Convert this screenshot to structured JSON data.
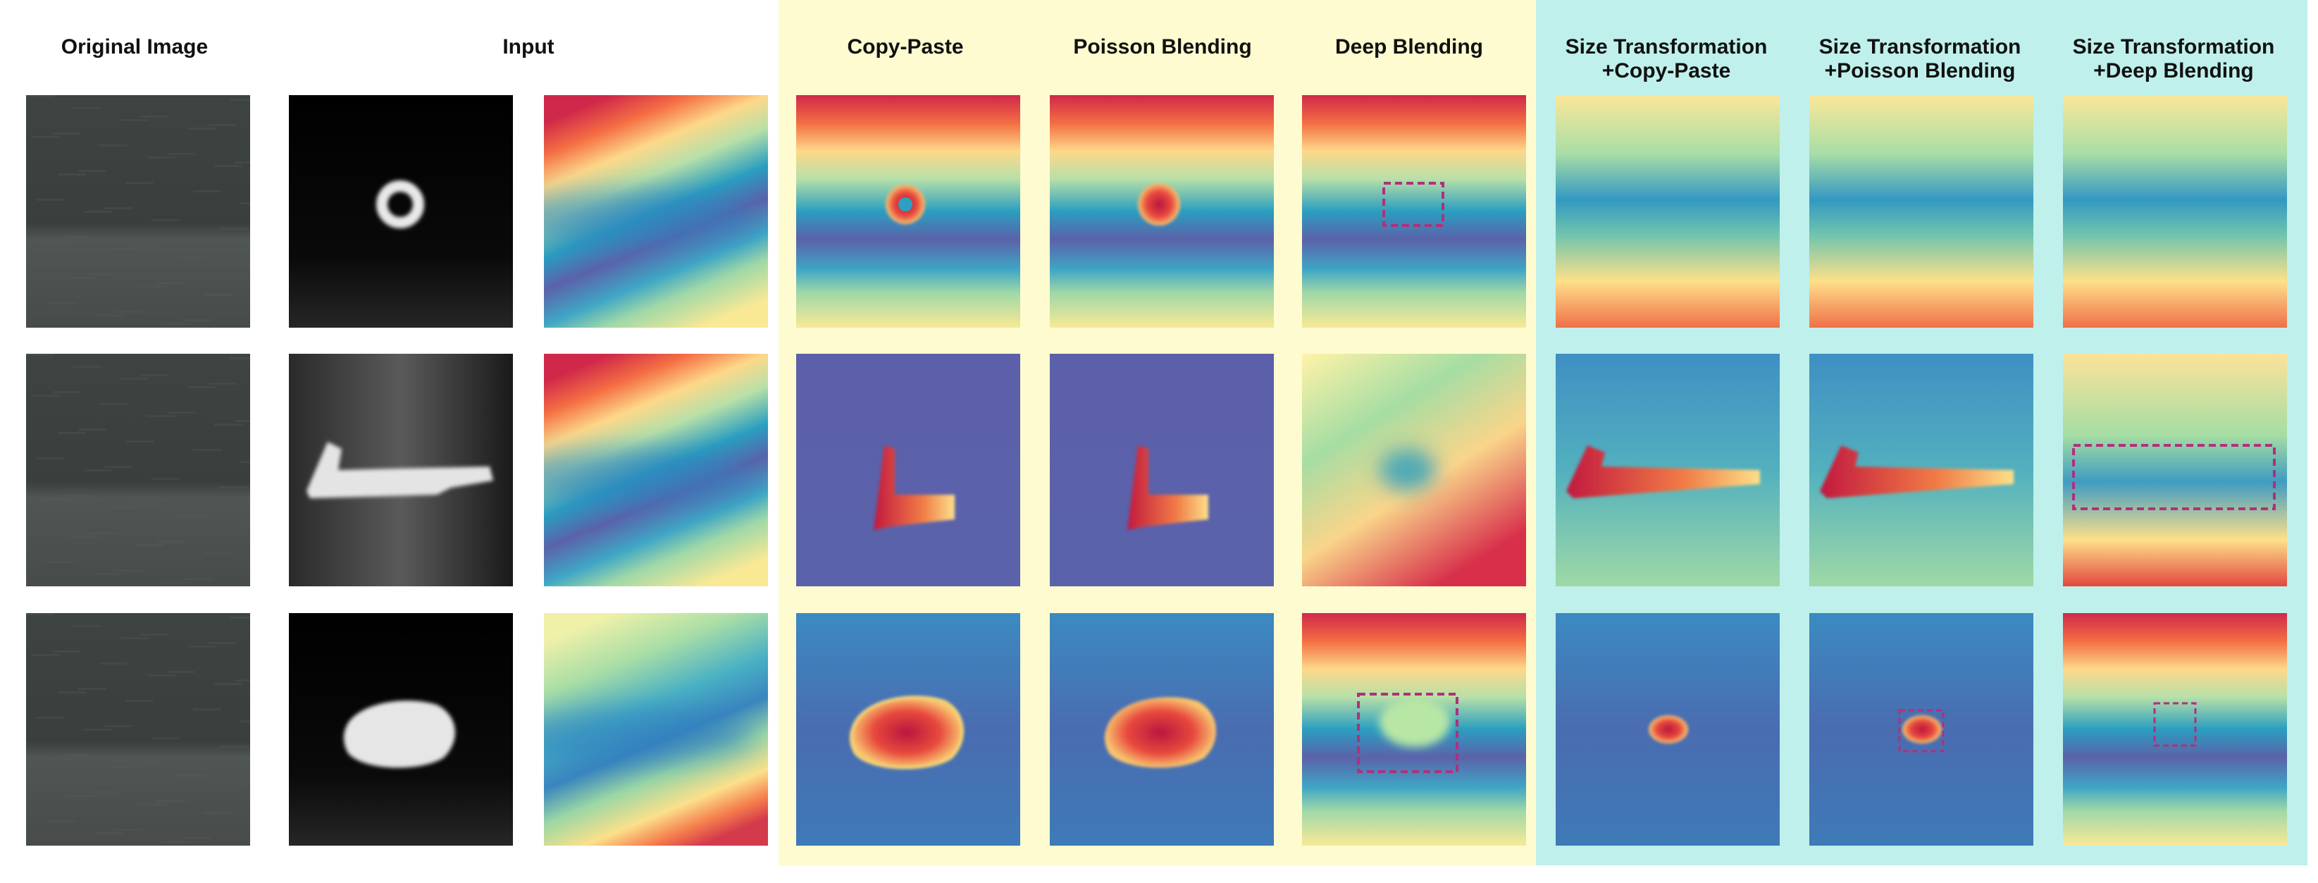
{
  "headers": {
    "original_image": "Original Image",
    "input": "Input",
    "copy_paste": "Copy-Paste",
    "poisson_blending": "Poisson Blending",
    "deep_blending": "Deep Blending",
    "size_copy_paste": [
      "Size Transformation",
      "+Copy-Paste"
    ],
    "size_poisson_blending": [
      "Size Transformation",
      "+Poisson Blending"
    ],
    "size_deep_blending": [
      "Size Transformation",
      "+Deep Blending"
    ]
  },
  "rows": [
    {
      "defect": "ring"
    },
    {
      "defect": "key"
    },
    {
      "defect": "blob"
    }
  ],
  "colors": {
    "blending_group_bg": "#fdfbcf",
    "size_transform_group_bg": "#bff0ec",
    "highlight_box": "#b0307a"
  }
}
